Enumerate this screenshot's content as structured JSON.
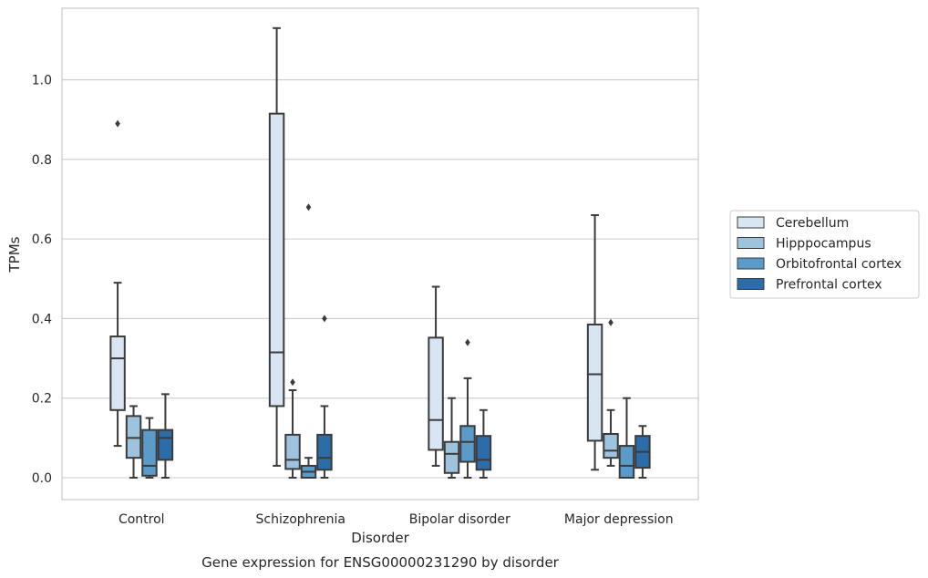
{
  "chart_data": {
    "type": "box",
    "caption": "Gene expression for ENSG00000231290 by disorder",
    "xlabel": "Disorder",
    "ylabel": "TPMs",
    "ylim": [
      -0.055,
      1.18
    ],
    "yticks": [
      0.0,
      0.2,
      0.4,
      0.6,
      0.8,
      1.0
    ],
    "ytick_labels": [
      "0.0",
      "0.2",
      "0.4",
      "0.6",
      "0.8",
      "1.0"
    ],
    "grid": "horizontal",
    "legend_position": "right",
    "categories": [
      "Control",
      "Schizophrenia",
      "Bipolar disorder",
      "Major depression"
    ],
    "series": [
      {
        "name": "Cerebellum",
        "color": "#d8e6f4",
        "boxes": [
          {
            "whislo": 0.08,
            "q1": 0.17,
            "med": 0.3,
            "q3": 0.355,
            "whishi": 0.49,
            "fliers": [
              0.89
            ]
          },
          {
            "whislo": 0.03,
            "q1": 0.18,
            "med": 0.315,
            "q3": 0.915,
            "whishi": 1.13,
            "fliers": []
          },
          {
            "whislo": 0.03,
            "q1": 0.07,
            "med": 0.145,
            "q3": 0.352,
            "whishi": 0.48,
            "fliers": []
          },
          {
            "whislo": 0.02,
            "q1": 0.093,
            "med": 0.26,
            "q3": 0.385,
            "whishi": 0.66,
            "fliers": []
          }
        ]
      },
      {
        "name": "Hipppocampus",
        "color": "#9dc3dd",
        "boxes": [
          {
            "whislo": 0.0,
            "q1": 0.05,
            "med": 0.1,
            "q3": 0.155,
            "whishi": 0.18,
            "fliers": []
          },
          {
            "whislo": 0.0,
            "q1": 0.022,
            "med": 0.045,
            "q3": 0.108,
            "whishi": 0.22,
            "fliers": [
              0.24
            ]
          },
          {
            "whislo": 0.0,
            "q1": 0.012,
            "med": 0.06,
            "q3": 0.09,
            "whishi": 0.2,
            "fliers": []
          },
          {
            "whislo": 0.03,
            "q1": 0.05,
            "med": 0.068,
            "q3": 0.11,
            "whishi": 0.17,
            "fliers": [
              0.39
            ]
          }
        ]
      },
      {
        "name": "Orbitofrontal cortex",
        "color": "#5b9bc9",
        "boxes": [
          {
            "whislo": 0.0,
            "q1": 0.005,
            "med": 0.03,
            "q3": 0.12,
            "whishi": 0.15,
            "fliers": []
          },
          {
            "whislo": 0.0,
            "q1": 0.0,
            "med": 0.015,
            "q3": 0.03,
            "whishi": 0.05,
            "fliers": [
              0.68
            ]
          },
          {
            "whislo": 0.0,
            "q1": 0.04,
            "med": 0.09,
            "q3": 0.13,
            "whishi": 0.25,
            "fliers": [
              0.34
            ]
          },
          {
            "whislo": 0.0,
            "q1": 0.0,
            "med": 0.03,
            "q3": 0.08,
            "whishi": 0.2,
            "fliers": []
          }
        ]
      },
      {
        "name": "Prefrontal cortex",
        "color": "#2c6ca8",
        "boxes": [
          {
            "whislo": 0.0,
            "q1": 0.045,
            "med": 0.1,
            "q3": 0.12,
            "whishi": 0.21,
            "fliers": []
          },
          {
            "whislo": 0.0,
            "q1": 0.02,
            "med": 0.05,
            "q3": 0.108,
            "whishi": 0.18,
            "fliers": [
              0.4
            ]
          },
          {
            "whislo": 0.0,
            "q1": 0.02,
            "med": 0.045,
            "q3": 0.105,
            "whishi": 0.17,
            "fliers": []
          },
          {
            "whislo": 0.0,
            "q1": 0.025,
            "med": 0.065,
            "q3": 0.105,
            "whishi": 0.13,
            "fliers": []
          }
        ]
      }
    ]
  }
}
